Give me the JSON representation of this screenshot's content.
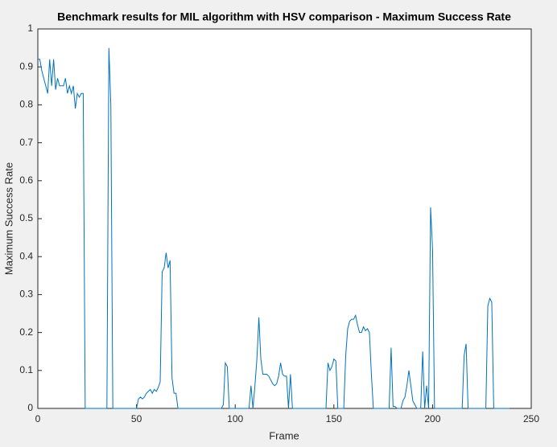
{
  "chart_data": {
    "type": "line",
    "title": "Benchmark results for MIL algorithm with HSV comparison - Maximum Success Rate",
    "x_label": "Frame",
    "y_label": "Maximum Success Rate",
    "color": "#0072bd",
    "x": [
      0,
      1,
      2,
      3,
      4,
      5,
      6,
      7,
      8,
      9,
      10,
      11,
      12,
      13,
      14,
      15,
      16,
      17,
      18,
      19,
      20,
      21,
      22,
      23,
      24,
      35,
      36,
      37,
      38,
      50,
      51,
      52,
      53,
      54,
      55,
      56,
      57,
      58,
      59,
      60,
      61,
      62,
      63,
      64,
      65,
      66,
      67,
      68,
      69,
      70,
      71,
      93,
      94,
      95,
      96,
      97,
      107,
      108,
      109,
      110,
      111,
      112,
      113,
      114,
      115,
      116,
      117,
      118,
      119,
      120,
      121,
      122,
      123,
      124,
      125,
      126,
      127,
      128,
      129,
      146,
      147,
      148,
      149,
      150,
      151,
      152,
      155,
      156,
      157,
      158,
      159,
      160,
      161,
      162,
      163,
      164,
      165,
      166,
      167,
      168,
      169,
      170,
      178,
      179,
      180,
      181,
      182,
      183,
      184,
      185,
      186,
      187,
      188,
      189,
      190,
      191,
      192,
      193,
      194,
      195,
      196,
      197,
      198,
      199,
      200,
      201,
      215,
      216,
      217,
      218,
      227,
      228,
      229,
      230,
      231,
      239
    ],
    "values": [
      0.92,
      0.92,
      0.89,
      0.87,
      0.85,
      0.83,
      0.92,
      0.85,
      0.92,
      0.84,
      0.87,
      0.85,
      0.85,
      0.85,
      0.87,
      0.83,
      0.85,
      0.83,
      0.85,
      0.79,
      0.83,
      0.82,
      0.83,
      0.83,
      0,
      0,
      0.95,
      0.8,
      0,
      0,
      0.025,
      0.03,
      0.025,
      0.03,
      0.04,
      0.045,
      0.05,
      0.04,
      0.05,
      0.045,
      0.055,
      0.07,
      0.36,
      0.37,
      0.41,
      0.37,
      0.39,
      0.08,
      0.04,
      0.04,
      0,
      0,
      0.01,
      0.12,
      0.11,
      0,
      0,
      0.06,
      0,
      0.06,
      0.13,
      0.24,
      0.13,
      0.09,
      0.09,
      0.09,
      0.085,
      0.075,
      0.065,
      0.06,
      0.065,
      0.085,
      0.12,
      0.09,
      0.085,
      0.085,
      0,
      0.09,
      0,
      0,
      0.12,
      0.1,
      0.11,
      0.13,
      0.125,
      0,
      0,
      0.14,
      0.21,
      0.23,
      0.235,
      0.235,
      0.245,
      0.22,
      0.2,
      0.2,
      0.215,
      0.205,
      0.21,
      0.2,
      0.09,
      0,
      0,
      0.16,
      0.005,
      0.005,
      0,
      0,
      0,
      0.02,
      0.03,
      0.06,
      0.1,
      0.06,
      0.02,
      0.01,
      0,
      0,
      0,
      0.15,
      0,
      0.06,
      0,
      0.53,
      0.42,
      0,
      0,
      0.14,
      0.17,
      0,
      0,
      0.27,
      0.29,
      0.28,
      0,
      0
    ],
    "xlim": [
      0,
      250
    ],
    "xticks": [
      0,
      50,
      100,
      150,
      200,
      250
    ],
    "ylim": [
      0,
      1
    ],
    "yticks": [
      0,
      0.1,
      0.2,
      0.3,
      0.4,
      0.5,
      0.6,
      0.7,
      0.8,
      0.9,
      1
    ],
    "grid": false
  }
}
